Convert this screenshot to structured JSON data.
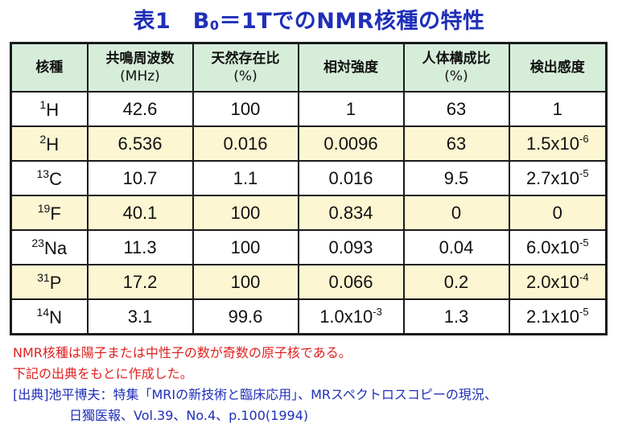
{
  "title": {
    "prefix": "表1　B",
    "sub": "0",
    "suffix": "＝1TでのNMR核種の特性"
  },
  "headers": {
    "nucleus": "核種",
    "freq_line1": "共鳴周波数",
    "freq_line2": "(MHz)",
    "abundance_line1": "天然存在比",
    "abundance_line2": "(%)",
    "intensity": "相対強度",
    "body_line1": "人体構成比",
    "body_line2": "(%)",
    "sensitivity": "検出感度"
  },
  "rows": [
    {
      "mass": "1",
      "symbol": "H",
      "freq": "42.6",
      "abundance": "100",
      "intensity": "1",
      "intensity_exp": "",
      "body": "63",
      "sens": "1",
      "sens_exp": ""
    },
    {
      "mass": "2",
      "symbol": "H",
      "freq": "6.536",
      "abundance": "0.016",
      "intensity": "0.0096",
      "intensity_exp": "",
      "body": "63",
      "sens": "1.5x10",
      "sens_exp": "-6"
    },
    {
      "mass": "13",
      "symbol": "C",
      "freq": "10.7",
      "abundance": "1.1",
      "intensity": "0.016",
      "intensity_exp": "",
      "body": "9.5",
      "sens": "2.7x10",
      "sens_exp": "-5"
    },
    {
      "mass": "19",
      "symbol": "F",
      "freq": "40.1",
      "abundance": "100",
      "intensity": "0.834",
      "intensity_exp": "",
      "body": "0",
      "sens": "0",
      "sens_exp": ""
    },
    {
      "mass": "23",
      "symbol": "Na",
      "freq": "11.3",
      "abundance": "100",
      "intensity": "0.093",
      "intensity_exp": "",
      "body": "0.04",
      "sens": "6.0x10",
      "sens_exp": "-5"
    },
    {
      "mass": "31",
      "symbol": "P",
      "freq": "17.2",
      "abundance": "100",
      "intensity": "0.066",
      "intensity_exp": "",
      "body": "0.2",
      "sens": "2.0x10",
      "sens_exp": "-4"
    },
    {
      "mass": "14",
      "symbol": "N",
      "freq": "3.1",
      "abundance": "99.6",
      "intensity": "1.0x10",
      "intensity_exp": "-3",
      "body": "1.3",
      "sens": "2.1x10",
      "sens_exp": "-5"
    }
  ],
  "notes": {
    "line1": "NMR核種は陽子または中性子の数が奇数の原子核である。",
    "line2": "下記の出典をもとに作成した。",
    "line3": "[出典]池平博夫：特集「MRIの新技術と臨床応用」、MRスペクトロスコピーの現況、",
    "line4": "日獨医報、Vol.39、No.4、p.100(1994)"
  },
  "colors": {
    "title": "#1f2fb8",
    "header_bg": "#d6edda",
    "even_row_bg": "#fdf6d2",
    "note_red": "#e0211f",
    "note_blue": "#1f2fb8"
  }
}
